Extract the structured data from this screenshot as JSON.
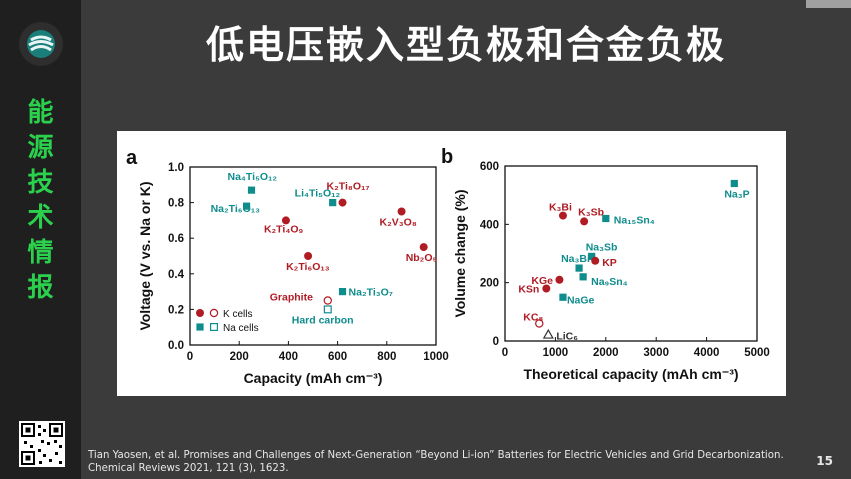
{
  "slide": {
    "title": "低电压嵌入型负极和合金负极",
    "sidebar_title": [
      "能",
      "源",
      "技",
      "术",
      "情",
      "报"
    ],
    "citation_line1": "Tian Yaosen, et al. Promises and Challenges of Next-Generation “Beyond Li-ion” Batteries for Electric Vehicles and Grid Decarbonization.",
    "citation_line2": "Chemical Reviews 2021, 121 (3), 1623.",
    "page_number": "15"
  },
  "colors": {
    "k": "#b01c24",
    "na": "#0f8c8c",
    "gray": "#333333",
    "green": "#2bd14d"
  },
  "chart_data": [
    {
      "type": "scatter",
      "panel_label": "a",
      "xlim": [
        0,
        1000
      ],
      "ylim": [
        0,
        1.0
      ],
      "xticks": [
        "0",
        "200",
        "400",
        "600",
        "800",
        "1000"
      ],
      "yticks": [
        "0.0",
        "0.2",
        "0.4",
        "0.6",
        "0.8",
        "1.0"
      ],
      "xlabel": "Capacity (mAh cm⁻³)",
      "ylabel": "Voltage (V vs. Na or K)",
      "legend": [
        "K cells",
        "Na cells"
      ],
      "points": [
        {
          "x": 250,
          "y": 0.87,
          "kind": "na_filled",
          "label": "Na₄Ti₅O₁₂",
          "color": "#0f8c8c"
        },
        {
          "x": 230,
          "y": 0.78,
          "kind": "na_filled",
          "label": "Na₂Ti₆O₁₃",
          "color": "#0f8c8c"
        },
        {
          "x": 580,
          "y": 0.8,
          "kind": "na_filled",
          "label": "Li₄Ti₅O₁₂",
          "color": "#0f8c8c"
        },
        {
          "x": 620,
          "y": 0.8,
          "kind": "k_filled",
          "label": "K₂Ti₈O₁₇",
          "color": "#b01c24"
        },
        {
          "x": 390,
          "y": 0.7,
          "kind": "k_filled",
          "label": "K₂Ti₄O₉",
          "color": "#b01c24"
        },
        {
          "x": 860,
          "y": 0.75,
          "kind": "k_filled",
          "label": "K₂V₃O₈",
          "color": "#b01c24"
        },
        {
          "x": 950,
          "y": 0.55,
          "kind": "k_filled",
          "label": "Nb₂O₅",
          "color": "#b01c24"
        },
        {
          "x": 480,
          "y": 0.5,
          "kind": "k_filled",
          "label": "K₂Ti₆O₁₃",
          "color": "#b01c24"
        },
        {
          "x": 620,
          "y": 0.3,
          "kind": "na_filled",
          "label": "Na₂Ti₃O₇",
          "color": "#0f8c8c"
        },
        {
          "x": 560,
          "y": 0.25,
          "kind": "k_open",
          "label": "Graphite",
          "color": "#b01c24"
        },
        {
          "x": 560,
          "y": 0.2,
          "kind": "na_open",
          "label": "Hard carbon",
          "color": "#0f8c8c"
        }
      ]
    },
    {
      "type": "scatter",
      "panel_label": "b",
      "xlim": [
        0,
        5000
      ],
      "ylim": [
        0,
        600
      ],
      "xticks": [
        "0",
        "1000",
        "2000",
        "3000",
        "4000",
        "5000"
      ],
      "yticks": [
        "0",
        "200",
        "400",
        "600"
      ],
      "xlabel": "Theoretical capacity (mAh cm⁻³)",
      "ylabel": "Volume change (%)",
      "points": [
        {
          "x": 4550,
          "y": 540,
          "kind": "na_filled",
          "label": "Na₃P",
          "color": "#0f8c8c"
        },
        {
          "x": 1150,
          "y": 430,
          "kind": "k_filled",
          "label": "K₃Bi",
          "color": "#b01c24"
        },
        {
          "x": 1570,
          "y": 410,
          "kind": "k_filled",
          "label": "K₃Sb",
          "color": "#b01c24"
        },
        {
          "x": 2000,
          "y": 420,
          "kind": "na_filled",
          "label": "Na₁₅Sn₄",
          "color": "#0f8c8c"
        },
        {
          "x": 1720,
          "y": 290,
          "kind": "na_filled",
          "label": "Na₃Sb",
          "color": "#0f8c8c"
        },
        {
          "x": 1470,
          "y": 250,
          "kind": "na_filled",
          "label": "Na₃Bi",
          "color": "#0f8c8c"
        },
        {
          "x": 1790,
          "y": 275,
          "kind": "k_filled",
          "label": "KP",
          "color": "#b01c24"
        },
        {
          "x": 1080,
          "y": 210,
          "kind": "k_filled",
          "label": "KGe",
          "color": "#b01c24"
        },
        {
          "x": 1550,
          "y": 220,
          "kind": "na_filled",
          "label": "Na₉Sn₄",
          "color": "#0f8c8c"
        },
        {
          "x": 820,
          "y": 180,
          "kind": "k_filled",
          "label": "KSn",
          "color": "#b01c24"
        },
        {
          "x": 1150,
          "y": 150,
          "kind": "na_filled",
          "label": "NaGe",
          "color": "#0f8c8c"
        },
        {
          "x": 680,
          "y": 60,
          "kind": "k_open",
          "label": "KC₈",
          "color": "#b01c24"
        },
        {
          "x": 860,
          "y": 22,
          "kind": "gray_tri",
          "label": "LiC₆",
          "color": "#333333"
        }
      ]
    }
  ]
}
